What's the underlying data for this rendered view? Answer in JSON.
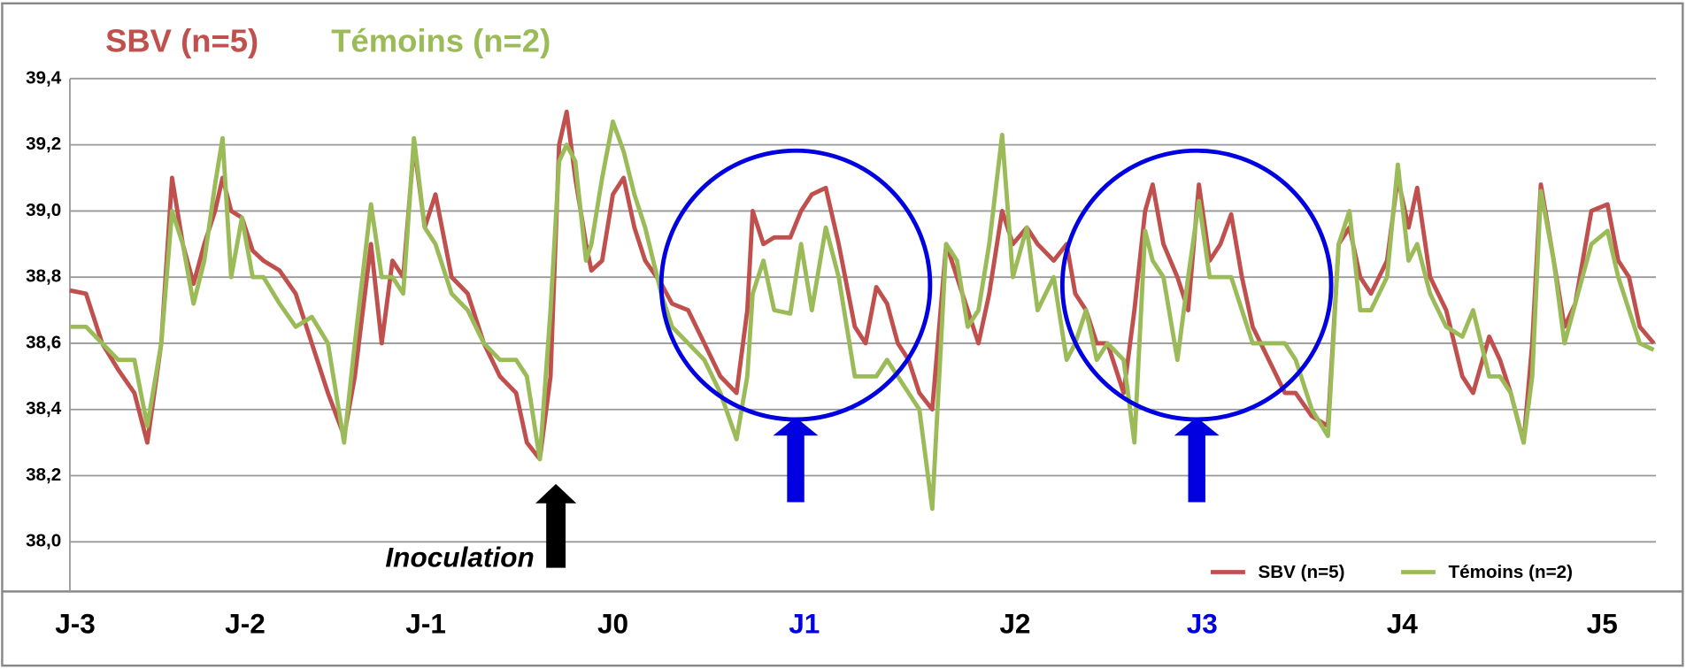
{
  "chart_data": {
    "type": "line",
    "x": [
      0,
      15,
      30,
      45,
      60,
      72,
      85,
      95,
      105,
      115,
      125,
      135,
      142,
      150,
      160,
      170,
      180,
      195,
      210,
      225,
      240,
      255,
      265,
      280,
      290,
      300,
      310,
      320,
      330,
      340,
      355,
      370,
      385,
      400,
      415,
      425,
      437,
      447,
      455,
      462,
      470,
      480,
      485,
      495,
      505,
      515,
      525,
      535,
      550,
      560,
      575,
      590,
      605,
      620,
      630,
      635,
      645,
      655,
      670,
      680,
      690,
      703,
      715,
      730,
      740,
      750,
      760,
      770,
      780,
      790,
      802,
      815,
      825,
      835,
      845,
      855,
      867,
      877,
      890,
      900,
      915,
      927,
      935,
      945,
      955,
      965,
      980,
      990,
      1000,
      1007,
      1017,
      1030,
      1040,
      1050,
      1060,
      1070,
      1080,
      1090,
      1100,
      1115,
      1130,
      1140,
      1155,
      1170,
      1180,
      1190,
      1200,
      1210,
      1225,
      1235,
      1245,
      1253,
      1265,
      1280,
      1295,
      1305,
      1320,
      1330,
      1340,
      1352,
      1360,
      1368,
      1380,
      1390,
      1400,
      1415,
      1430,
      1440,
      1450,
      1460,
      1473
    ],
    "series": [
      {
        "name": "SBV (n=5)",
        "color": "#c0504d",
        "values": [
          38.76,
          38.75,
          38.6,
          38.52,
          38.45,
          38.3,
          38.6,
          39.1,
          38.9,
          38.78,
          38.9,
          39.0,
          39.1,
          39.0,
          38.98,
          38.88,
          38.85,
          38.82,
          38.75,
          38.6,
          38.45,
          38.32,
          38.5,
          38.9,
          38.6,
          38.85,
          38.8,
          39.2,
          38.95,
          39.05,
          38.8,
          38.75,
          38.6,
          38.5,
          38.45,
          38.3,
          38.25,
          38.5,
          39.2,
          39.3,
          39.1,
          38.9,
          38.82,
          38.85,
          39.05,
          39.1,
          38.95,
          38.85,
          38.78,
          38.72,
          38.7,
          38.6,
          38.5,
          38.45,
          38.7,
          39.0,
          38.9,
          38.92,
          38.92,
          39.0,
          39.05,
          39.07,
          38.9,
          38.65,
          38.6,
          38.77,
          38.72,
          38.6,
          38.55,
          38.45,
          38.4,
          38.9,
          38.8,
          38.7,
          38.6,
          38.75,
          39.0,
          38.9,
          38.95,
          38.9,
          38.85,
          38.9,
          38.75,
          38.7,
          38.6,
          38.6,
          38.45,
          38.7,
          39.0,
          39.08,
          38.9,
          38.8,
          38.7,
          39.08,
          38.85,
          38.9,
          38.99,
          38.8,
          38.65,
          38.55,
          38.45,
          38.45,
          38.38,
          38.35,
          38.9,
          38.95,
          38.8,
          38.75,
          38.85,
          39.1,
          38.95,
          39.07,
          38.8,
          38.7,
          38.5,
          38.45,
          38.62,
          38.55,
          38.45,
          38.3,
          38.6,
          39.08,
          38.85,
          38.65,
          38.72,
          39.0,
          39.02,
          38.85,
          38.8,
          38.65,
          38.6
        ]
      },
      {
        "name": "Témoins (n=2)",
        "color": "#9bbb59",
        "values": [
          38.65,
          38.65,
          38.6,
          38.55,
          38.55,
          38.35,
          38.6,
          39.0,
          38.9,
          38.72,
          38.85,
          39.08,
          39.22,
          38.8,
          38.98,
          38.8,
          38.8,
          38.72,
          38.65,
          38.68,
          38.6,
          38.3,
          38.6,
          39.02,
          38.8,
          38.8,
          38.75,
          39.22,
          38.95,
          38.9,
          38.75,
          38.7,
          38.6,
          38.55,
          38.55,
          38.5,
          38.25,
          38.7,
          39.15,
          39.2,
          39.15,
          38.85,
          38.9,
          39.1,
          39.27,
          39.18,
          39.05,
          38.95,
          38.75,
          38.65,
          38.6,
          38.55,
          38.45,
          38.31,
          38.5,
          38.75,
          38.85,
          38.7,
          38.69,
          38.9,
          38.7,
          38.95,
          38.8,
          38.5,
          38.5,
          38.5,
          38.55,
          38.5,
          38.45,
          38.4,
          38.1,
          38.9,
          38.85,
          38.65,
          38.7,
          38.9,
          39.23,
          38.8,
          38.95,
          38.7,
          38.8,
          38.55,
          38.6,
          38.7,
          38.55,
          38.6,
          38.55,
          38.3,
          38.94,
          38.85,
          38.8,
          38.55,
          38.8,
          39.03,
          38.8,
          38.8,
          38.8,
          38.7,
          38.6,
          38.6,
          38.6,
          38.55,
          38.4,
          38.32,
          38.9,
          39.0,
          38.7,
          38.7,
          38.8,
          39.14,
          38.85,
          38.9,
          38.75,
          38.65,
          38.62,
          38.7,
          38.5,
          38.5,
          38.45,
          38.3,
          38.5,
          39.06,
          38.85,
          38.6,
          38.72,
          38.9,
          38.94,
          38.8,
          38.7,
          38.6,
          38.58
        ]
      }
    ],
    "xlim": [
      0,
      1475
    ],
    "xticks": [
      {
        "value": 5,
        "label": "J-3"
      },
      {
        "value": 163,
        "label": "J-2"
      },
      {
        "value": 331,
        "label": "J-1"
      },
      {
        "value": 505,
        "label": "J0"
      },
      {
        "value": 683,
        "label": "J1"
      },
      {
        "value": 879,
        "label": "J2"
      },
      {
        "value": 1053,
        "label": "J3"
      },
      {
        "value": 1239,
        "label": "J4"
      },
      {
        "value": 1425,
        "label": "J5"
      }
    ],
    "xtick_label_colors": [
      "#000000",
      "#000000",
      "#000000",
      "#000000",
      "#0000e0",
      "#000000",
      "#0000e0",
      "#000000",
      "#000000"
    ],
    "ylim": [
      37.85,
      39.4
    ],
    "yticks": [
      {
        "value": 38.0,
        "label": "38,0"
      },
      {
        "value": 38.2,
        "label": "38,2"
      },
      {
        "value": 38.4,
        "label": "38,4"
      },
      {
        "value": 38.6,
        "label": "38,6"
      },
      {
        "value": 38.8,
        "label": "38,8"
      },
      {
        "value": 39.0,
        "label": "39,0"
      },
      {
        "value": 39.2,
        "label": "39,2"
      },
      {
        "value": 39.4,
        "label": "39,4"
      }
    ],
    "grid": true,
    "legend": "lower right",
    "annotations": [
      {
        "text": "Inoculation"
      }
    ]
  }
}
